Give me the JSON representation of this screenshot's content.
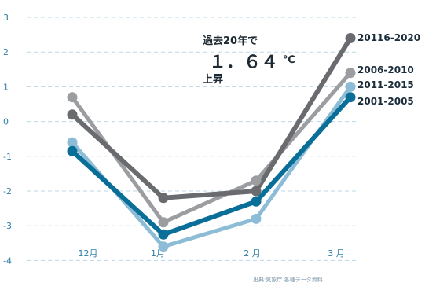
{
  "chart_data": {
    "type": "line",
    "categories": [
      "12月",
      "1月",
      "2 月",
      "3 月"
    ],
    "ylim": [
      -4,
      3
    ],
    "yticks": [
      "3",
      "2",
      "1",
      "0",
      "-1",
      "-2",
      "-3",
      "-4"
    ],
    "grid": true,
    "series": [
      {
        "name": "20116-2020",
        "color": "#6a6b6e",
        "values": [
          0.2,
          -2.2,
          -2.0,
          2.4
        ]
      },
      {
        "name": "2006-2010",
        "color": "#9c9da0",
        "values": [
          0.7,
          -2.9,
          -1.7,
          1.4
        ]
      },
      {
        "name": "2011-2015",
        "color": "#8dbcd6",
        "values": [
          -0.6,
          -3.6,
          -2.8,
          1.0
        ]
      },
      {
        "name": "2001-2005",
        "color": "#0a6f98",
        "values": [
          -0.85,
          -3.25,
          -2.3,
          0.7
        ]
      }
    ],
    "annotation": {
      "line1": "過去20年で",
      "line2": "１．６４",
      "unit": "℃",
      "line3": "上昇"
    },
    "source_note": "出典:気象庁 各種データ資料"
  }
}
